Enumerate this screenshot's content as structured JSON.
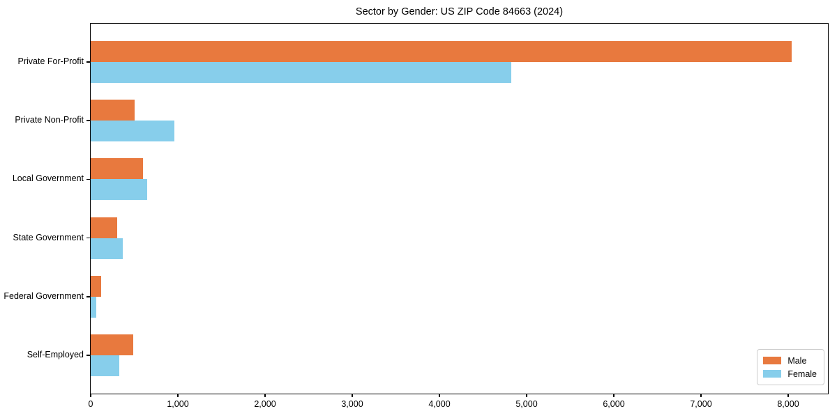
{
  "title": "Sector by Gender: US ZIP Code 84663 (2024)",
  "chart_data": {
    "type": "bar",
    "orientation": "horizontal",
    "title": "Sector by Gender: US ZIP Code 84663 (2024)",
    "xlabel": "",
    "ylabel": "",
    "categories": [
      "Private For-Profit",
      "Private Non-Profit",
      "Local Government",
      "State Government",
      "Federal Government",
      "Self-Employed"
    ],
    "series": [
      {
        "name": "Male",
        "color": "#e8793e",
        "values": [
          8040,
          500,
          600,
          300,
          120,
          490
        ]
      },
      {
        "name": "Female",
        "color": "#87ceeb",
        "values": [
          4820,
          960,
          650,
          370,
          65,
          330
        ]
      }
    ],
    "xlim": [
      0,
      8456
    ],
    "xticks": [
      0,
      1000,
      2000,
      3000,
      4000,
      5000,
      6000,
      7000,
      8000
    ],
    "grid": false,
    "legend": {
      "position": "lower right",
      "entries": [
        "Male",
        "Female"
      ]
    }
  }
}
